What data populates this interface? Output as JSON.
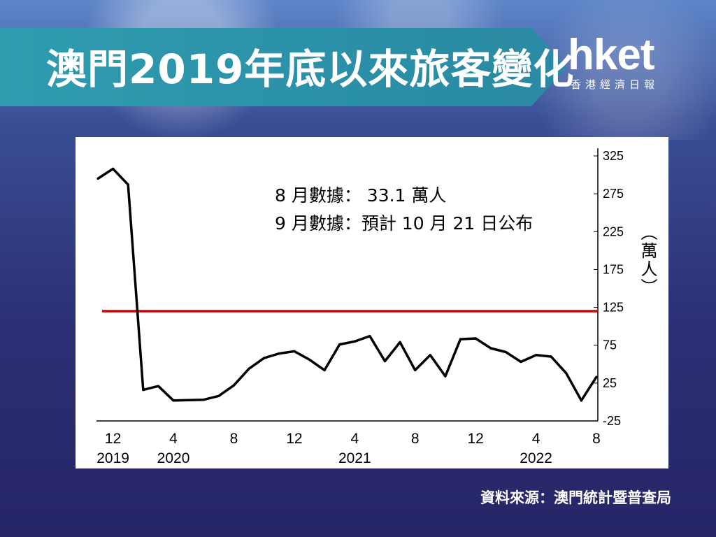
{
  "header": {
    "title": "澳門2019年底以來旅客變化"
  },
  "logo": {
    "main": "hket",
    "sub": "香港經濟日報"
  },
  "source": "資料來源：澳門統計暨普查局",
  "colors": {
    "line": "#000000",
    "reference_line": "#cc0000",
    "banner": "#2f9cb0"
  },
  "chart_data": {
    "type": "line",
    "title": "",
    "ylabel": "（萬人）",
    "ylim": [
      -25,
      325
    ],
    "yticks": [
      325,
      275,
      225,
      175,
      125,
      75,
      25,
      -25
    ],
    "x": [
      "2019-11",
      "2019-12",
      "2020-01",
      "2020-02",
      "2020-03",
      "2020-04",
      "2020-05",
      "2020-06",
      "2020-07",
      "2020-08",
      "2020-09",
      "2020-10",
      "2020-11",
      "2020-12",
      "2021-01",
      "2021-02",
      "2021-03",
      "2021-04",
      "2021-05",
      "2021-06",
      "2021-07",
      "2021-08",
      "2021-09",
      "2021-10",
      "2021-11",
      "2021-12",
      "2022-01",
      "2022-02",
      "2022-03",
      "2022-04",
      "2022-05",
      "2022-06",
      "2022-07",
      "2022-08"
    ],
    "xtick_labels": [
      {
        "x": "2019-12",
        "month": "12",
        "year": "2019"
      },
      {
        "x": "2020-04",
        "month": "4",
        "year": "2020"
      },
      {
        "x": "2020-08",
        "month": "8",
        "year": ""
      },
      {
        "x": "2020-12",
        "month": "12",
        "year": ""
      },
      {
        "x": "2021-04",
        "month": "4",
        "year": "2021"
      },
      {
        "x": "2021-08",
        "month": "8",
        "year": ""
      },
      {
        "x": "2021-12",
        "month": "12",
        "year": ""
      },
      {
        "x": "2022-04",
        "month": "4",
        "year": "2022"
      },
      {
        "x": "2022-08",
        "month": "8",
        "year": ""
      }
    ],
    "series": [
      {
        "values": [
          295,
          308,
          287,
          16,
          21,
          2,
          2.5,
          3,
          8,
          22,
          44,
          58,
          64,
          67,
          56,
          42,
          76,
          80,
          87,
          54,
          79,
          42,
          62,
          34,
          83,
          84,
          71,
          66,
          53,
          62,
          60,
          38,
          2,
          33.1
        ]
      }
    ],
    "reference_line": {
      "y": 120
    },
    "annotations": [
      "8 月數據：  33.1 萬人",
      "9 月數據：預計 10 月 21 日公布"
    ],
    "grid": false,
    "legend": "none"
  }
}
